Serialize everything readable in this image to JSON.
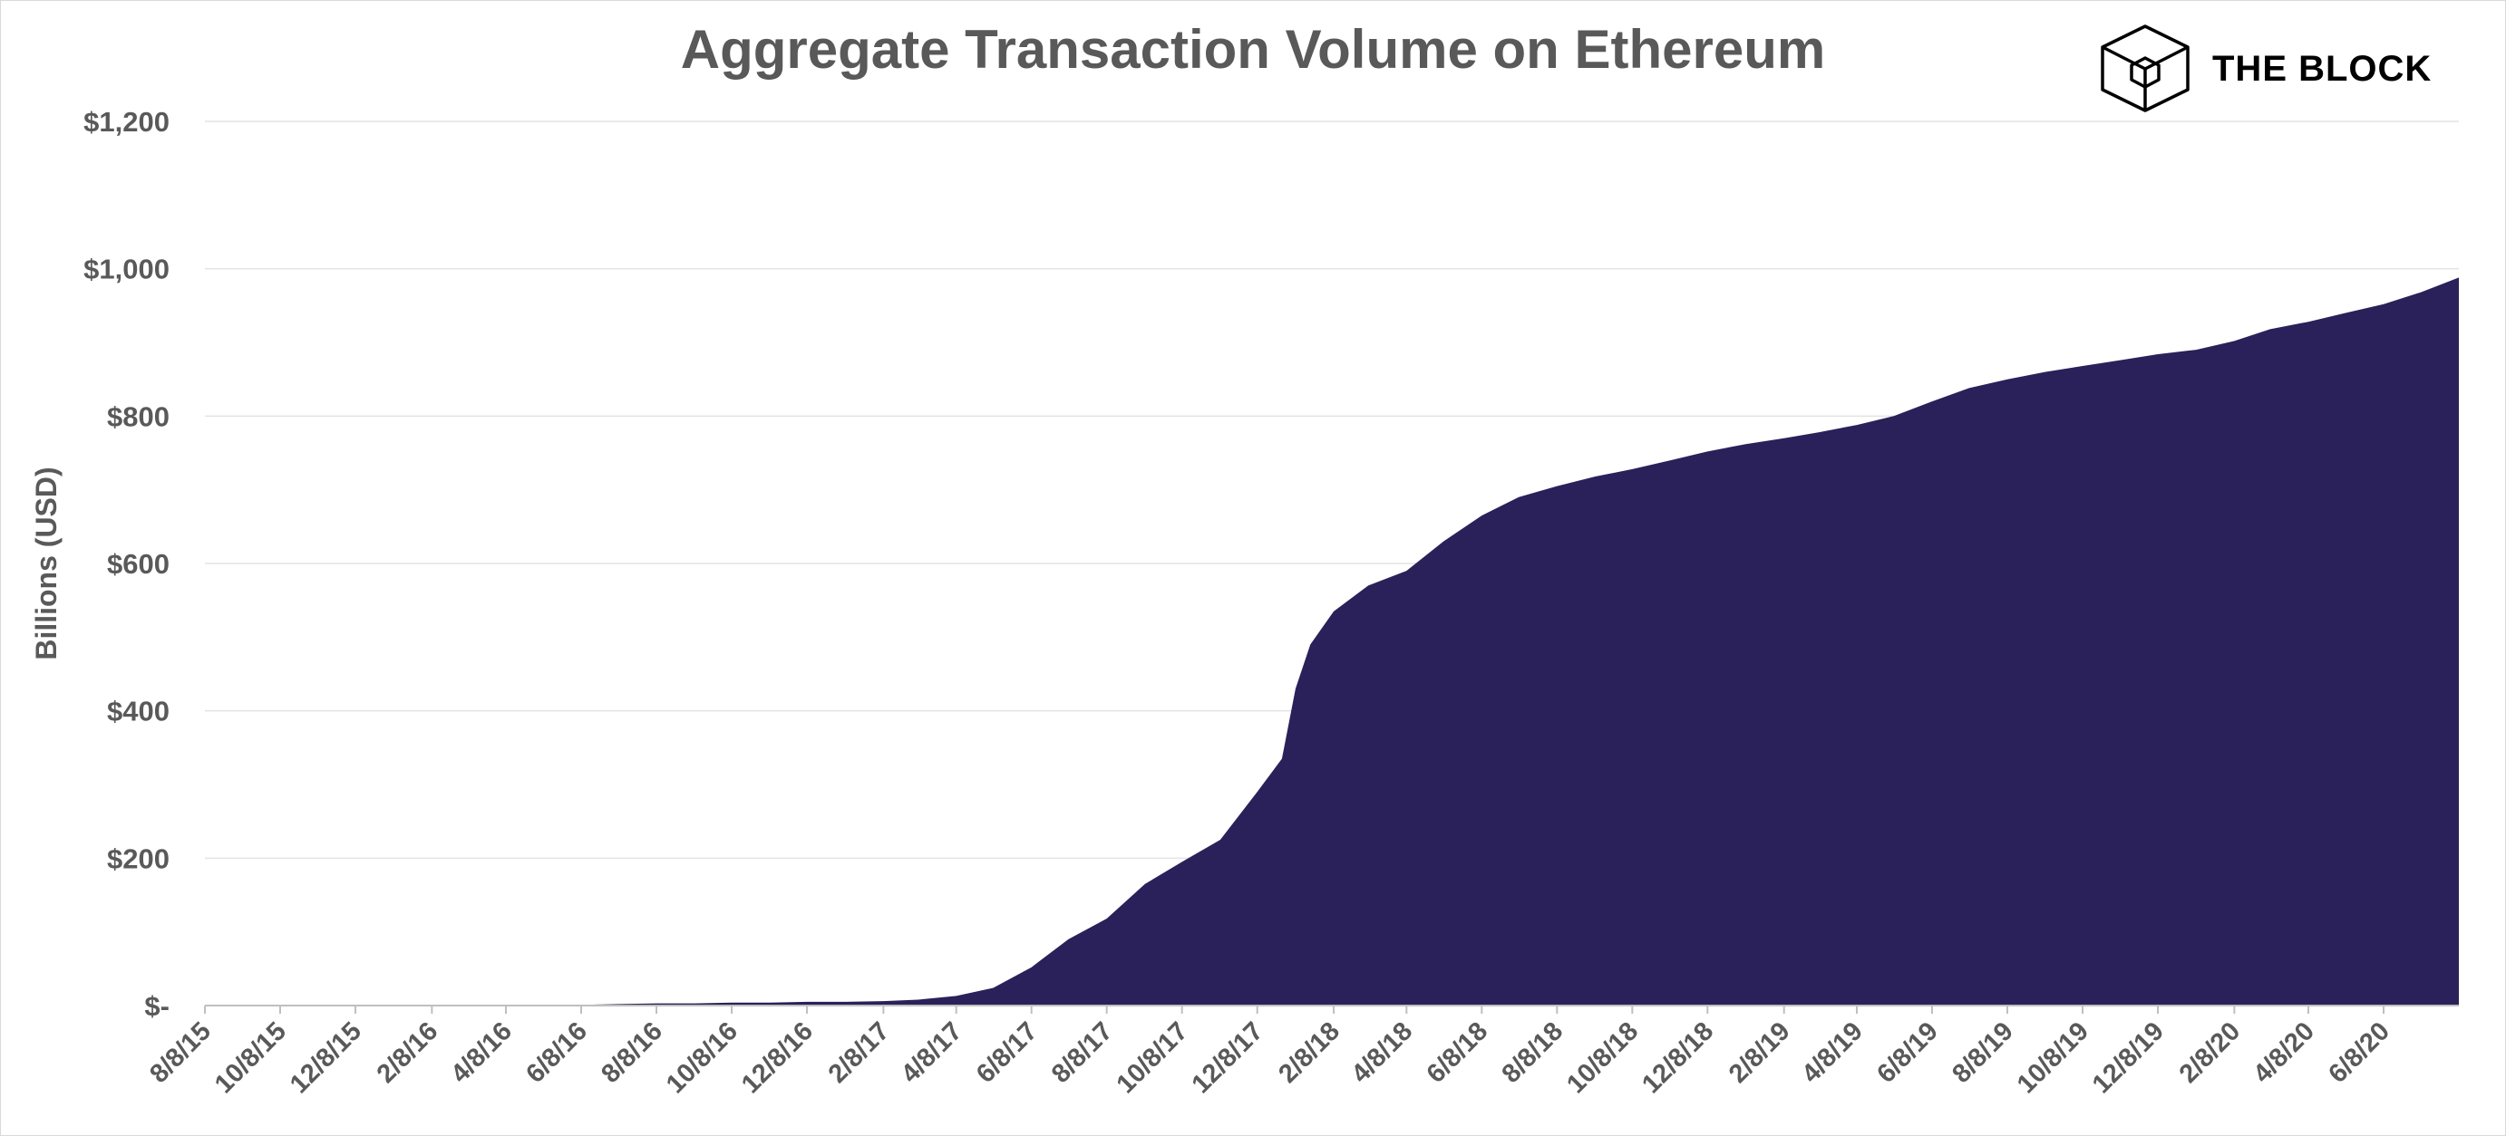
{
  "brand": {
    "name": "THE BLOCK",
    "logo_icon": "cube-icon"
  },
  "chart_data": {
    "type": "area",
    "title": "Aggregate Transaction Volume on Ethereum",
    "xlabel": "",
    "ylabel": "Billions (USD)",
    "ylim": [
      0,
      1200
    ],
    "yticks": [
      0,
      200,
      400,
      600,
      800,
      1000,
      1200
    ],
    "ytick_labels": [
      "$-",
      "$200",
      "$400",
      "$600",
      "$800",
      "$1,000",
      "$1,200"
    ],
    "xticks": [
      "8/8/15",
      "10/8/15",
      "12/8/15",
      "2/8/16",
      "4/8/16",
      "6/8/16",
      "8/8/16",
      "10/8/16",
      "12/8/16",
      "2/8/17",
      "4/8/17",
      "6/8/17",
      "8/8/17",
      "10/8/17",
      "12/8/17",
      "2/8/18",
      "4/8/18",
      "6/8/18",
      "8/8/18",
      "10/8/18",
      "12/8/18",
      "2/8/19",
      "4/8/19",
      "6/8/19",
      "8/8/19",
      "10/8/19",
      "12/8/19",
      "2/8/20",
      "4/8/20",
      "6/8/20"
    ],
    "grid": true,
    "color": "#2a215a",
    "series": [
      {
        "values": [
          [
            "8/8/15",
            0
          ],
          [
            "10/8/15",
            0
          ],
          [
            "12/8/15",
            0
          ],
          [
            "2/8/16",
            0
          ],
          [
            "4/8/16",
            0
          ],
          [
            "6/8/16",
            1
          ],
          [
            "7/8/16",
            2
          ],
          [
            "8/8/16",
            3
          ],
          [
            "9/8/16",
            3
          ],
          [
            "10/8/16",
            4
          ],
          [
            "11/8/16",
            4
          ],
          [
            "12/8/16",
            5
          ],
          [
            "1/8/17",
            5
          ],
          [
            "2/8/17",
            6
          ],
          [
            "3/8/17",
            8
          ],
          [
            "4/8/17",
            13
          ],
          [
            "5/8/17",
            24
          ],
          [
            "6/8/17",
            52
          ],
          [
            "7/8/17",
            90
          ],
          [
            "8/8/17",
            118
          ],
          [
            "9/8/17",
            165
          ],
          [
            "10/8/17",
            195
          ],
          [
            "11/8/17",
            225
          ],
          [
            "12/8/17",
            290
          ],
          [
            "12/28/17",
            335
          ],
          [
            "1/8/18",
            430
          ],
          [
            "1/20/18",
            490
          ],
          [
            "2/8/18",
            535
          ],
          [
            "3/8/18",
            570
          ],
          [
            "4/8/18",
            590
          ],
          [
            "5/8/18",
            630
          ],
          [
            "6/8/18",
            665
          ],
          [
            "7/8/18",
            690
          ],
          [
            "8/8/18",
            705
          ],
          [
            "9/8/18",
            718
          ],
          [
            "10/8/18",
            728
          ],
          [
            "11/8/18",
            740
          ],
          [
            "12/8/18",
            752
          ],
          [
            "1/8/19",
            762
          ],
          [
            "2/8/19",
            770
          ],
          [
            "3/8/19",
            778
          ],
          [
            "4/8/19",
            788
          ],
          [
            "5/8/19",
            800
          ],
          [
            "6/8/19",
            820
          ],
          [
            "7/8/19",
            838
          ],
          [
            "8/8/19",
            850
          ],
          [
            "9/8/19",
            860
          ],
          [
            "10/8/19",
            868
          ],
          [
            "11/8/19",
            876
          ],
          [
            "12/8/19",
            884
          ],
          [
            "1/8/20",
            890
          ],
          [
            "2/8/20",
            902
          ],
          [
            "3/8/20",
            918
          ],
          [
            "4/8/20",
            928
          ],
          [
            "5/8/20",
            940
          ],
          [
            "6/8/20",
            952
          ],
          [
            "7/8/20",
            968
          ],
          [
            "8/8/20",
            988
          ]
        ]
      }
    ]
  }
}
